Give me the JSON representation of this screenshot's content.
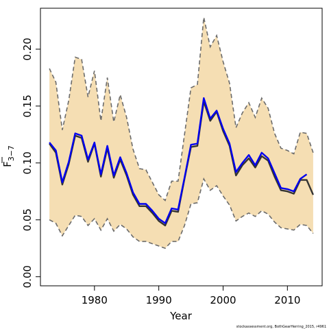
{
  "chart_data": {
    "type": "line",
    "xlabel": "Year",
    "ylabel_main": "F",
    "ylabel_sub": "3−7",
    "xlim": [
      1971.6,
      2015.4
    ],
    "ylim": [
      -0.008,
      0.236
    ],
    "xticks": [
      1980,
      1990,
      2000,
      2010
    ],
    "yticks": [
      0.0,
      0.05,
      0.1,
      0.15,
      0.2
    ],
    "ytick_labels": [
      "0.00",
      "0.05",
      "0.10",
      "0.15",
      "0.20"
    ],
    "footer": "stockassessment.org, BothGearHerring_2015, r4961",
    "colors": {
      "band_fill": "#F5DEB3",
      "band_edge": "#6b6b6b",
      "estimate": "#333333",
      "highlight": "#0000ee"
    },
    "years": [
      1973,
      1974,
      1975,
      1976,
      1977,
      1978,
      1979,
      1980,
      1981,
      1982,
      1983,
      1984,
      1985,
      1986,
      1987,
      1988,
      1989,
      1990,
      1991,
      1992,
      1993,
      1994,
      1995,
      1996,
      1997,
      1998,
      1999,
      2000,
      2001,
      2002,
      2003,
      2004,
      2005,
      2006,
      2007,
      2008,
      2009,
      2010,
      2011,
      2012,
      2013,
      2014
    ],
    "upper": [
      0.183,
      0.171,
      0.129,
      0.155,
      0.193,
      0.191,
      0.158,
      0.181,
      0.137,
      0.175,
      0.136,
      0.16,
      0.14,
      0.112,
      0.095,
      0.094,
      0.083,
      0.072,
      0.067,
      0.084,
      0.084,
      0.125,
      0.166,
      0.169,
      0.228,
      0.202,
      0.212,
      0.189,
      0.17,
      0.131,
      0.144,
      0.153,
      0.14,
      0.157,
      0.148,
      0.126,
      0.113,
      0.111,
      0.108,
      0.127,
      0.126,
      0.109
    ],
    "lower": [
      0.05,
      0.047,
      0.036,
      0.045,
      0.054,
      0.053,
      0.045,
      0.051,
      0.041,
      0.051,
      0.04,
      0.046,
      0.042,
      0.035,
      0.031,
      0.031,
      0.029,
      0.027,
      0.025,
      0.031,
      0.031,
      0.045,
      0.064,
      0.065,
      0.086,
      0.076,
      0.08,
      0.071,
      0.063,
      0.049,
      0.053,
      0.056,
      0.053,
      0.058,
      0.055,
      0.048,
      0.043,
      0.042,
      0.041,
      0.046,
      0.045,
      0.038
    ],
    "series": [
      {
        "values": [
          0.117,
          0.109,
          0.081,
          0.099,
          0.124,
          0.122,
          0.101,
          0.117,
          0.088,
          0.113,
          0.087,
          0.103,
          0.089,
          0.072,
          0.062,
          0.062,
          0.056,
          0.049,
          0.045,
          0.058,
          0.057,
          0.086,
          0.114,
          0.115,
          0.154,
          0.137,
          0.145,
          0.128,
          0.115,
          0.089,
          0.098,
          0.104,
          0.096,
          0.106,
          0.102,
          0.088,
          0.076,
          0.075,
          0.073,
          0.085,
          0.085,
          0.072
        ]
      },
      {
        "values": [
          0.118,
          0.111,
          0.083,
          0.101,
          0.126,
          0.124,
          0.103,
          0.118,
          0.09,
          0.115,
          0.089,
          0.105,
          0.091,
          0.074,
          0.064,
          0.064,
          0.058,
          0.051,
          0.047,
          0.06,
          0.059,
          0.087,
          0.116,
          0.117,
          0.157,
          0.139,
          0.146,
          0.13,
          0.117,
          0.092,
          0.1,
          0.107,
          0.098,
          0.109,
          0.104,
          0.091,
          0.078,
          0.077,
          0.075,
          0.086,
          0.09,
          null
        ]
      }
    ]
  }
}
